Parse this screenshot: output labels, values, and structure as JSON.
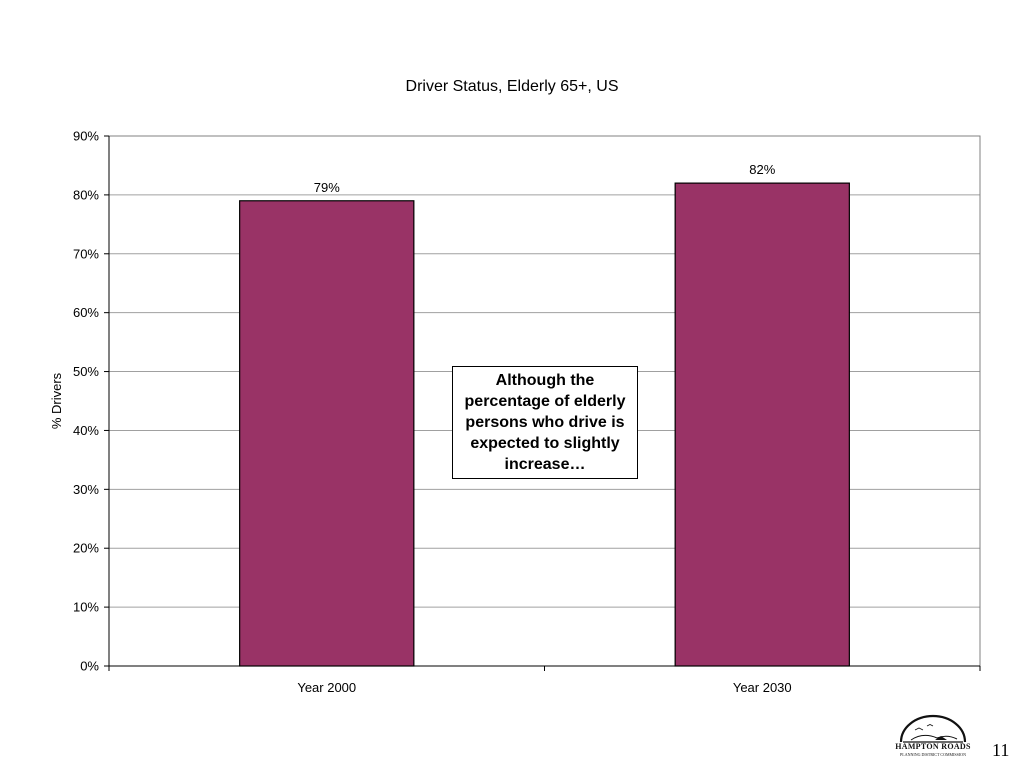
{
  "chart_data": {
    "type": "bar",
    "title": "Driver Status, Elderly 65+, US",
    "ylabel": "% Drivers",
    "xlabel": "",
    "categories": [
      "Year 2000",
      "Year 2030"
    ],
    "values": [
      79,
      82
    ],
    "data_labels": [
      "79%",
      "82%"
    ],
    "ylim": [
      0,
      90
    ],
    "yticks": [
      0,
      10,
      20,
      30,
      40,
      50,
      60,
      70,
      80,
      90
    ],
    "ytick_labels": [
      "0%",
      "10%",
      "20%",
      "30%",
      "40%",
      "50%",
      "60%",
      "70%",
      "80%",
      "90%"
    ],
    "grid": true,
    "legend": "none",
    "bar_color": "#993366"
  },
  "annotation": {
    "text": "Although the percentage of elderly persons who drive is expected to slightly increase…"
  },
  "logo": {
    "icon": "hampton-roads-logo-icon",
    "name": "HAMPTON ROADS",
    "subtitle": "PLANNING DISTRICT COMMISSION"
  },
  "slide_number": "11"
}
